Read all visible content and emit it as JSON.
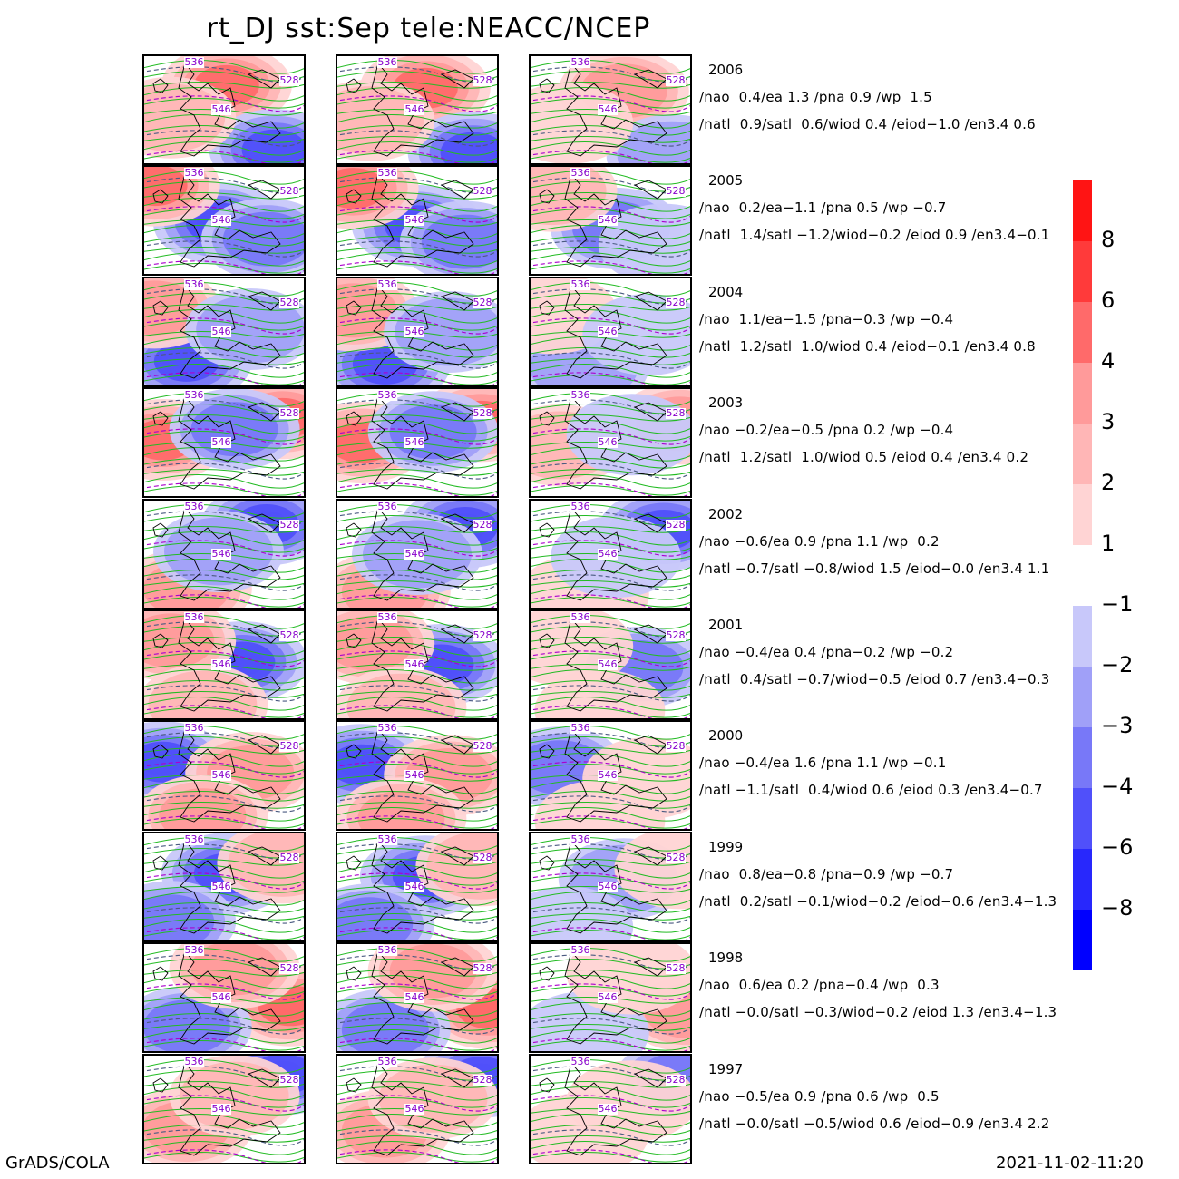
{
  "title": "rt_DJ  sst:Sep  tele:NEACC/NCEP",
  "footer": {
    "left": "GrADS/COLA",
    "right": "2021-11-02-11:20"
  },
  "colorbar": {
    "positive": [
      {
        "label": "8",
        "color": "#ff1414"
      },
      {
        "label": "6",
        "color": "#ff3a3a"
      },
      {
        "label": "4",
        "color": "#ff6a6a"
      },
      {
        "label": "3",
        "color": "#ff9a9a"
      },
      {
        "label": "2",
        "color": "#ffb6b6"
      },
      {
        "label": "1",
        "color": "#ffd4d4"
      }
    ],
    "negative": [
      {
        "label": "-1",
        "color": "#c8c8fa"
      },
      {
        "label": "-2",
        "color": "#a0a0f8"
      },
      {
        "label": "-3",
        "color": "#7878f8"
      },
      {
        "label": "-4",
        "color": "#5050fa"
      },
      {
        "label": "-6",
        "color": "#2828fc"
      },
      {
        "label": "-8",
        "color": "#0000ff"
      }
    ]
  },
  "contour_colors": {
    "green": "#22bb22",
    "dashed": "#4a5a80",
    "purple": "#aa00cc",
    "label": "#8800cc"
  },
  "rows": [
    {
      "year": "2006",
      "line1": "/nao  0.4/ea 1.3 /pna 0.9 /wp  1.5",
      "line2": "/natl  0.9/satl  0.6/wiod 0.4 /eiod−1.0 /en3.4 0.6",
      "anoms": [
        [
          0.55,
          0.3,
          5
        ],
        [
          0.85,
          0.9,
          -4
        ],
        [
          0.2,
          0.6,
          2
        ]
      ],
      "labels": [
        "536",
        "528",
        "546"
      ]
    },
    {
      "year": "2005",
      "line1": "/nao  0.2/ea−1.1 /pna 0.5 /wp −0.7",
      "line2": "/natl  1.4/satl −1.2/wiod−0.2 /eiod 0.9 /en3.4−0.1",
      "anoms": [
        [
          0.5,
          0.55,
          -6
        ],
        [
          0.1,
          0.2,
          4
        ],
        [
          0.8,
          0.7,
          -3
        ]
      ],
      "labels": [
        "536",
        "528",
        "546"
      ]
    },
    {
      "year": "2004",
      "line1": "/nao  1.1/ea−1.5 /pna−0.3 /wp −0.4",
      "line2": "/natl  1.2/satl  1.0/wiod 0.4 /eiod−0.1 /en3.4 0.8",
      "anoms": [
        [
          0.3,
          0.8,
          -4
        ],
        [
          0.1,
          0.3,
          3
        ],
        [
          0.7,
          0.5,
          -2
        ]
      ],
      "labels": [
        "536",
        "528",
        "546"
      ]
    },
    {
      "year": "2003",
      "line1": "/nao −0.2/ea−0.5 /pna 0.2 /wp −0.4",
      "line2": "/natl  1.2/satl  1.0/wiod 0.5 /eiod 0.4 /en3.4 0.2",
      "anoms": [
        [
          0.15,
          0.5,
          4
        ],
        [
          0.9,
          0.3,
          6
        ],
        [
          0.6,
          0.4,
          -3
        ]
      ],
      "labels": [
        "536",
        "528",
        "546"
      ]
    },
    {
      "year": "2002",
      "line1": "/nao −0.6/ea 0.9 /pna 1.1 /wp  0.2",
      "line2": "/natl −0.7/satl −0.8/wiod 1.5 /eiod−0.0 /en3.4 1.1",
      "anoms": [
        [
          0.8,
          0.25,
          -8
        ],
        [
          0.3,
          0.85,
          3
        ],
        [
          0.5,
          0.5,
          -2
        ]
      ],
      "labels": [
        "536",
        "528",
        "546"
      ]
    },
    {
      "year": "2001",
      "line1": "/nao −0.4/ea 0.4 /pna−0.2 /wp −0.2",
      "line2": "/natl  0.4/satl −0.7/wiod−0.5 /eiod 0.7 /en3.4−0.3",
      "anoms": [
        [
          0.65,
          0.5,
          -6
        ],
        [
          0.2,
          0.3,
          3
        ],
        [
          0.4,
          0.9,
          2
        ]
      ],
      "labels": [
        "536",
        "528",
        "546"
      ]
    },
    {
      "year": "2000",
      "line1": "/nao −0.4/ea 1.6 /pna 1.1 /wp −0.1",
      "line2": "/natl −1.1/satl  0.4/wiod 0.6 /eiod 0.3 /en3.4−0.7",
      "anoms": [
        [
          0.15,
          0.4,
          -6
        ],
        [
          0.7,
          0.5,
          3
        ],
        [
          0.4,
          0.9,
          3
        ]
      ],
      "labels": [
        "536",
        "528",
        "546"
      ]
    },
    {
      "year": "1999",
      "line1": "/nao  0.8/ea−0.8 /pna−0.9 /wp −0.7",
      "line2": "/natl  0.2/satl −0.1/wiod−0.2 /eiod−0.6 /en3.4−1.3",
      "anoms": [
        [
          0.55,
          0.4,
          -4
        ],
        [
          0.2,
          0.85,
          -3
        ],
        [
          0.9,
          0.3,
          2
        ]
      ],
      "labels": [
        "536",
        "528",
        "546"
      ]
    },
    {
      "year": "1998",
      "line1": "/nao  0.6/ea 0.2 /pna−0.4 /wp  0.3",
      "line2": "/natl −0.0/satl −0.3/wiod−0.2 /eiod 1.3 /en3.4−1.3",
      "anoms": [
        [
          0.95,
          0.6,
          6
        ],
        [
          0.3,
          0.8,
          -3
        ],
        [
          0.6,
          0.25,
          3
        ]
      ],
      "labels": [
        "536",
        "528",
        "546"
      ]
    },
    {
      "year": "1997",
      "line1": "/nao −0.5/ea 0.9 /pna 0.6 /wp  0.5",
      "line2": "/natl −0.0/satl −0.5/wiod 0.6 /eiod−0.9 /en3.4 2.2",
      "anoms": [
        [
          0.9,
          0.2,
          -6
        ],
        [
          0.3,
          0.7,
          3
        ],
        [
          0.6,
          0.4,
          2
        ]
      ],
      "labels": [
        "536",
        "528",
        "546"
      ]
    }
  ]
}
